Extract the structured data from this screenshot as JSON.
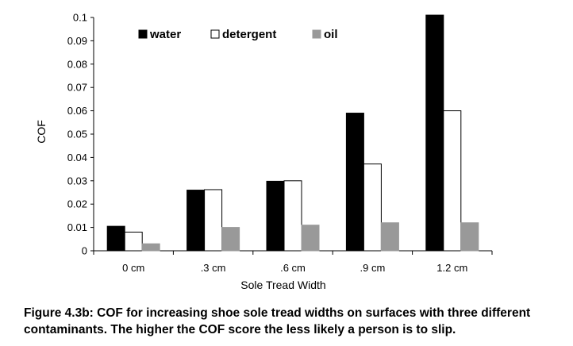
{
  "chart_data": {
    "type": "bar",
    "title": "",
    "xlabel": "Sole Tread Width",
    "ylabel": "COF",
    "categories": [
      "0 cm",
      ".3 cm",
      ".6 cm",
      ".9 cm",
      "1.2 cm"
    ],
    "ylim": [
      0,
      0.1
    ],
    "yticks": [
      "0",
      "0.01",
      "0.02",
      "0.03",
      "0.04",
      "0.05",
      "0.06",
      "0.07",
      "0.08",
      "0.09",
      "0.1"
    ],
    "grid": false,
    "legend": "top-left, horizontal",
    "series": [
      {
        "name": "water",
        "color": "#000000",
        "values": [
          0.0105,
          0.026,
          0.0298,
          0.059,
          0.101
        ]
      },
      {
        "name": "detergent",
        "color": "#ffffff",
        "values": [
          0.008,
          0.0262,
          0.03,
          0.0372,
          0.06
        ]
      },
      {
        "name": "oil",
        "color": "#999999",
        "values": [
          0.003,
          0.01,
          0.011,
          0.012,
          0.012
        ]
      }
    ]
  },
  "caption_line1": "Figure 4.3b:  COF for increasing shoe sole tread widths on surfaces with three different",
  "caption_line2": "contaminants.  The higher the COF score the less likely a person is to slip."
}
